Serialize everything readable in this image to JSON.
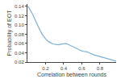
{
  "chart_data": {
    "type": "line",
    "xlabel": "Correlation between rounds",
    "ylabel": "Probability of EOT",
    "x": [
      0.0,
      0.01,
      0.02,
      0.04,
      0.06,
      0.08,
      0.1,
      0.12,
      0.14,
      0.16,
      0.18,
      0.2,
      0.22,
      0.24,
      0.26,
      0.28,
      0.3,
      0.32,
      0.34,
      0.36,
      0.38,
      0.4,
      0.42,
      0.44,
      0.46,
      0.48,
      0.5,
      0.52,
      0.54,
      0.56,
      0.58,
      0.6,
      0.62,
      0.64,
      0.66,
      0.68,
      0.7,
      0.72,
      0.74,
      0.76,
      0.78,
      0.8,
      0.82,
      0.84,
      0.86,
      0.88,
      0.9,
      0.92,
      0.94,
      0.96,
      0.98
    ],
    "values": [
      0.14,
      0.139,
      0.136,
      0.13,
      0.122,
      0.113,
      0.104,
      0.096,
      0.088,
      0.081,
      0.075,
      0.07,
      0.066,
      0.063,
      0.061,
      0.059,
      0.058,
      0.057,
      0.057,
      0.058,
      0.059,
      0.06,
      0.06,
      0.059,
      0.057,
      0.055,
      0.053,
      0.051,
      0.05,
      0.048,
      0.046,
      0.044,
      0.043,
      0.043,
      0.042,
      0.04,
      0.038,
      0.036,
      0.035,
      0.034,
      0.033,
      0.032,
      0.031,
      0.03,
      0.029,
      0.028,
      0.026,
      0.025,
      0.024,
      0.023,
      0.022
    ],
    "color": "#7bafd4",
    "xlim": [
      0.0,
      0.98
    ],
    "ylim": [
      0.02,
      0.145
    ],
    "xticks": [
      0.2,
      0.4,
      0.6,
      0.8
    ],
    "yticks": [
      0.02,
      0.04,
      0.06,
      0.08,
      {
        "value": 0.1,
        "label": "0.10"
      },
      0.12,
      0.14
    ],
    "grid": false
  }
}
